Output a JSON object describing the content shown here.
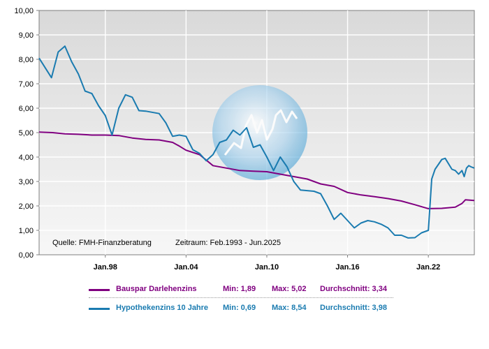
{
  "chart_data": {
    "type": "line",
    "title": "",
    "xlabel": "",
    "ylabel": "",
    "ylim": [
      0,
      10
    ],
    "xlim": [
      "1993-02",
      "2025-06"
    ],
    "yticks": [
      "0,00",
      "1,00",
      "2,00",
      "3,00",
      "4,00",
      "5,00",
      "6,00",
      "7,00",
      "8,00",
      "9,00",
      "10,00"
    ],
    "xticks": [
      {
        "label": "Jan.98",
        "date": "1998-01"
      },
      {
        "label": "Jan.04",
        "date": "2004-01"
      },
      {
        "label": "Jan.10",
        "date": "2010-01"
      },
      {
        "label": "Jan.16",
        "date": "2016-01"
      },
      {
        "label": "Jan.22",
        "date": "2022-01"
      }
    ],
    "grid": true,
    "source_note": "Quelle: FMH-Finanzberatung",
    "period_note": "Zeitraum: Feb.1993 - Jun.2025",
    "series": [
      {
        "name": "Bauspar Darlehenzins",
        "color": "#800080",
        "min": "Min: 1,89",
        "max": "Max: 5,02",
        "avg": "Durchschnitt: 3,34",
        "points": [
          [
            "1993-02",
            5.02
          ],
          [
            "1994-02",
            5.0
          ],
          [
            "1995-01",
            4.95
          ],
          [
            "1996-01",
            4.93
          ],
          [
            "1997-01",
            4.9
          ],
          [
            "1998-01",
            4.9
          ],
          [
            "1999-01",
            4.88
          ],
          [
            "2000-01",
            4.78
          ],
          [
            "2001-01",
            4.72
          ],
          [
            "2002-01",
            4.7
          ],
          [
            "2003-01",
            4.6
          ],
          [
            "2003-07",
            4.45
          ],
          [
            "2004-01",
            4.28
          ],
          [
            "2005-01",
            4.1
          ],
          [
            "2006-01",
            3.65
          ],
          [
            "2007-01",
            3.55
          ],
          [
            "2008-01",
            3.45
          ],
          [
            "2009-01",
            3.42
          ],
          [
            "2010-01",
            3.4
          ],
          [
            "2011-01",
            3.3
          ],
          [
            "2012-01",
            3.2
          ],
          [
            "2013-01",
            3.1
          ],
          [
            "2014-01",
            2.9
          ],
          [
            "2015-01",
            2.8
          ],
          [
            "2016-01",
            2.55
          ],
          [
            "2017-01",
            2.45
          ],
          [
            "2018-01",
            2.38
          ],
          [
            "2019-01",
            2.3
          ],
          [
            "2020-01",
            2.2
          ],
          [
            "2021-01",
            2.05
          ],
          [
            "2022-01",
            1.89
          ],
          [
            "2023-01",
            1.9
          ],
          [
            "2024-01",
            1.95
          ],
          [
            "2024-07",
            2.1
          ],
          [
            "2024-10",
            2.25
          ],
          [
            "2025-06",
            2.22
          ]
        ]
      },
      {
        "name": "Hypothekenzins 10 Jahre",
        "color": "#1a7bb0",
        "min": "Min: 0,69",
        "max": "Max: 8,54",
        "avg": "Durchschnitt: 3,98",
        "points": [
          [
            "1993-02",
            8.05
          ],
          [
            "1994-01",
            7.25
          ],
          [
            "1994-07",
            8.3
          ],
          [
            "1995-01",
            8.54
          ],
          [
            "1995-07",
            7.9
          ],
          [
            "1996-01",
            7.4
          ],
          [
            "1996-07",
            6.7
          ],
          [
            "1997-01",
            6.6
          ],
          [
            "1997-07",
            6.1
          ],
          [
            "1998-01",
            5.7
          ],
          [
            "1998-07",
            4.9
          ],
          [
            "1999-01",
            6.0
          ],
          [
            "1999-07",
            6.55
          ],
          [
            "2000-01",
            6.45
          ],
          [
            "2000-07",
            5.9
          ],
          [
            "2001-01",
            5.88
          ],
          [
            "2002-01",
            5.78
          ],
          [
            "2002-07",
            5.4
          ],
          [
            "2003-01",
            4.85
          ],
          [
            "2003-07",
            4.9
          ],
          [
            "2004-01",
            4.85
          ],
          [
            "2004-07",
            4.3
          ],
          [
            "2005-01",
            4.15
          ],
          [
            "2005-07",
            3.85
          ],
          [
            "2006-01",
            4.1
          ],
          [
            "2006-07",
            4.6
          ],
          [
            "2007-01",
            4.7
          ],
          [
            "2007-07",
            5.1
          ],
          [
            "2008-01",
            4.9
          ],
          [
            "2008-07",
            5.2
          ],
          [
            "2009-01",
            4.4
          ],
          [
            "2009-07",
            4.5
          ],
          [
            "2010-01",
            4.0
          ],
          [
            "2010-07",
            3.45
          ],
          [
            "2011-01",
            4.0
          ],
          [
            "2011-07",
            3.6
          ],
          [
            "2012-01",
            3.0
          ],
          [
            "2012-07",
            2.65
          ],
          [
            "2013-07",
            2.6
          ],
          [
            "2014-01",
            2.5
          ],
          [
            "2014-07",
            2.0
          ],
          [
            "2015-01",
            1.45
          ],
          [
            "2015-07",
            1.7
          ],
          [
            "2016-01",
            1.4
          ],
          [
            "2016-07",
            1.1
          ],
          [
            "2017-01",
            1.3
          ],
          [
            "2017-07",
            1.4
          ],
          [
            "2018-01",
            1.35
          ],
          [
            "2018-07",
            1.25
          ],
          [
            "2019-01",
            1.1
          ],
          [
            "2019-07",
            0.8
          ],
          [
            "2020-01",
            0.8
          ],
          [
            "2020-07",
            0.69
          ],
          [
            "2021-01",
            0.7
          ],
          [
            "2021-07",
            0.9
          ],
          [
            "2022-01",
            1.0
          ],
          [
            "2022-04",
            3.1
          ],
          [
            "2022-07",
            3.5
          ],
          [
            "2023-01",
            3.9
          ],
          [
            "2023-04",
            3.95
          ],
          [
            "2023-10",
            3.5
          ],
          [
            "2024-01",
            3.45
          ],
          [
            "2024-04",
            3.3
          ],
          [
            "2024-07",
            3.45
          ],
          [
            "2024-09",
            3.2
          ],
          [
            "2024-11",
            3.55
          ],
          [
            "2025-01",
            3.65
          ],
          [
            "2025-03",
            3.6
          ],
          [
            "2025-06",
            3.55
          ]
        ]
      }
    ]
  }
}
